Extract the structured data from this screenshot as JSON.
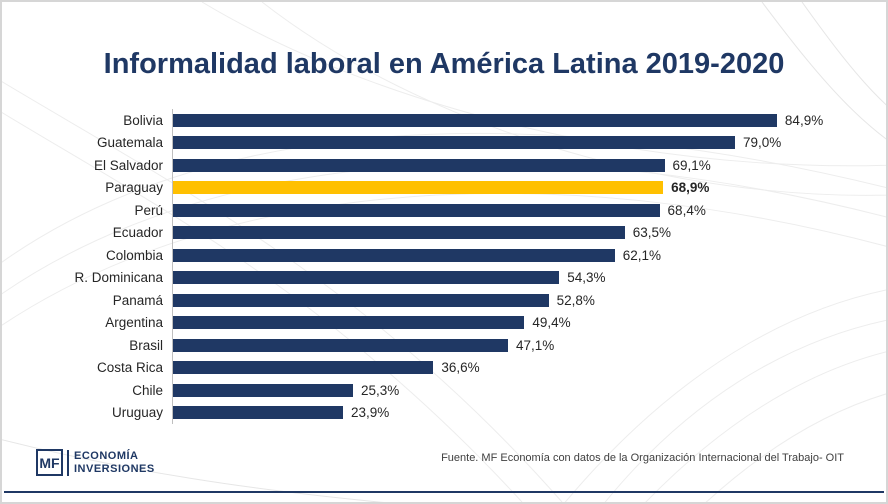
{
  "slide": {
    "title": "Informalidad laboral en América Latina 2019-2020"
  },
  "chart_data": {
    "type": "bar",
    "orientation": "horizontal",
    "title": "Informalidad laboral en América Latina 2019-2020",
    "categories": [
      "Bolivia",
      "Guatemala",
      "El Salvador",
      "Paraguay",
      "Perú",
      "Ecuador",
      "Colombia",
      "R. Dominicana",
      "Panamá",
      "Argentina",
      "Brasil",
      "Costa Rica",
      "Chile",
      "Uruguay"
    ],
    "values": [
      84.9,
      79.0,
      69.1,
      68.9,
      68.4,
      63.5,
      62.1,
      54.3,
      52.8,
      49.4,
      47.1,
      36.6,
      25.3,
      23.9
    ],
    "value_labels": [
      "84,9%",
      "79,0%",
      "69,1%",
      "68,9%",
      "68,4%",
      "63,5%",
      "62,1%",
      "54,3%",
      "52,8%",
      "49,4%",
      "47,1%",
      "36,6%",
      "25,3%",
      "23,9%"
    ],
    "highlight_category": "Paraguay",
    "bar_color": "#1F3864",
    "highlight_color": "#FFC000",
    "xlim": [
      0,
      97
    ],
    "grid": false,
    "legend": false
  },
  "footer": {
    "logo_monogram": "MF",
    "logo_line1": "ECONOMÍA",
    "logo_line2": "INVERSIONES",
    "source": "Fuente. MF Economía con datos de la Organización Internacional del Trabajo- OIT"
  },
  "colors": {
    "navy": "#1F3864",
    "gold": "#FFC000",
    "axis_line": "#BFBFBF",
    "slide_border": "#D6D6D6",
    "text": "#262626"
  }
}
